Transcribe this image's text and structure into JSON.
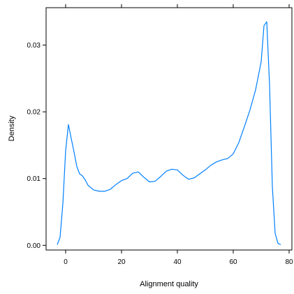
{
  "chart_data": {
    "type": "line",
    "title": "",
    "xlabel": "Alignment quality",
    "ylabel": "Density",
    "xlim": [
      -7,
      81
    ],
    "ylim": [
      -0.0007,
      0.0356
    ],
    "grid": false,
    "legend": "none",
    "line_color": "#0080ff",
    "x_ticks": [
      0,
      20,
      40,
      60,
      80
    ],
    "x_tick_labels": [
      "0",
      "20",
      "40",
      "60",
      "80"
    ],
    "y_ticks": [
      0.0,
      0.01,
      0.02,
      0.03
    ],
    "y_tick_labels": [
      "0.00",
      "0.01",
      "0.02",
      "0.03"
    ],
    "series": [
      {
        "x": [
          -3,
          -2,
          -1,
          0,
          1,
          2,
          3,
          4,
          5,
          6,
          7,
          8,
          10,
          12,
          14,
          16,
          18,
          20,
          22,
          24,
          26,
          28,
          30,
          32,
          34,
          36,
          38,
          40,
          42,
          44,
          46,
          48,
          50,
          52,
          54,
          56,
          58,
          60,
          62,
          64,
          66,
          68,
          70,
          71,
          72,
          73,
          74,
          75,
          76,
          77
        ],
        "y": [
          0.0001,
          0.0012,
          0.0062,
          0.0142,
          0.0181,
          0.016,
          0.014,
          0.0118,
          0.0107,
          0.0104,
          0.0098,
          0.009,
          0.0083,
          0.0081,
          0.0081,
          0.0084,
          0.0091,
          0.0097,
          0.01,
          0.0108,
          0.011,
          0.0102,
          0.0095,
          0.0096,
          0.0103,
          0.0111,
          0.0114,
          0.0113,
          0.0105,
          0.0099,
          0.0101,
          0.0107,
          0.0113,
          0.012,
          0.0125,
          0.0128,
          0.013,
          0.0137,
          0.0154,
          0.0178,
          0.0203,
          0.0233,
          0.0275,
          0.0329,
          0.0335,
          0.024,
          0.0088,
          0.0018,
          0.0003,
          0.0001
        ]
      }
    ]
  }
}
